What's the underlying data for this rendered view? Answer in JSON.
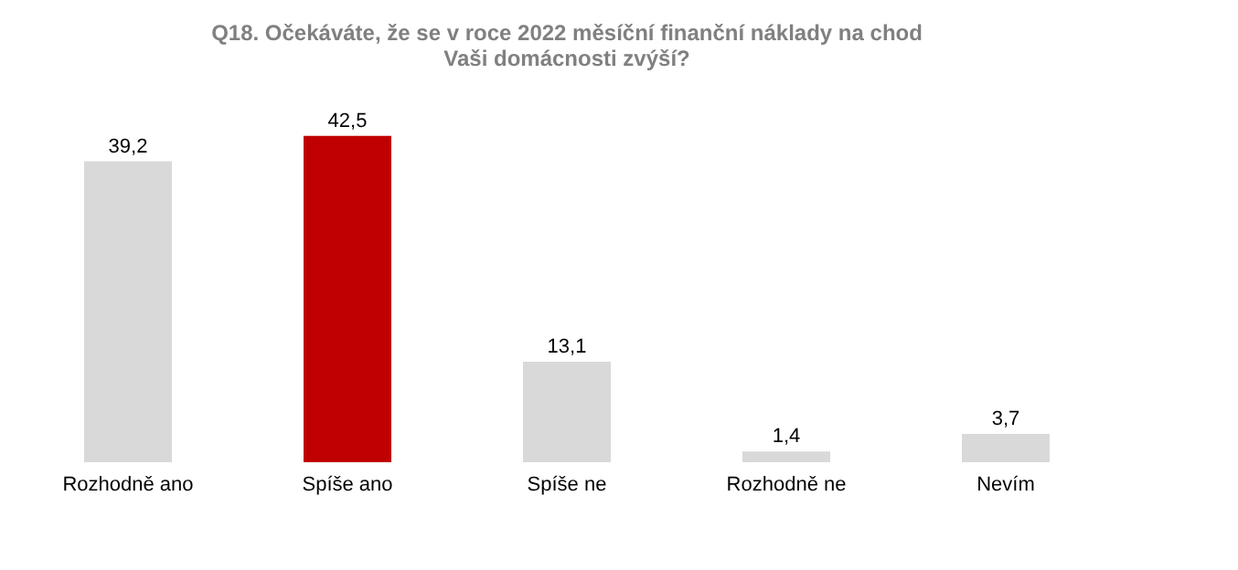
{
  "chart_data": {
    "type": "bar",
    "title": "Q18. Očekáváte, že se v roce 2022 měsíční finanční náklady na chod\nVaši domácnosti zvýší?",
    "categories": [
      "Rozhodně ano",
      "Spíše ano",
      "Spíše ne",
      "Rozhodně ne",
      "Nevím"
    ],
    "values": [
      39.2,
      42.5,
      13.1,
      1.4,
      3.7
    ],
    "colors": [
      "#d9d9d9",
      "#c00000",
      "#d9d9d9",
      "#d9d9d9",
      "#d9d9d9"
    ],
    "value_labels": [
      "39,2",
      "42,5",
      "13,1",
      "1,4",
      "3,7"
    ],
    "grid": false
  }
}
